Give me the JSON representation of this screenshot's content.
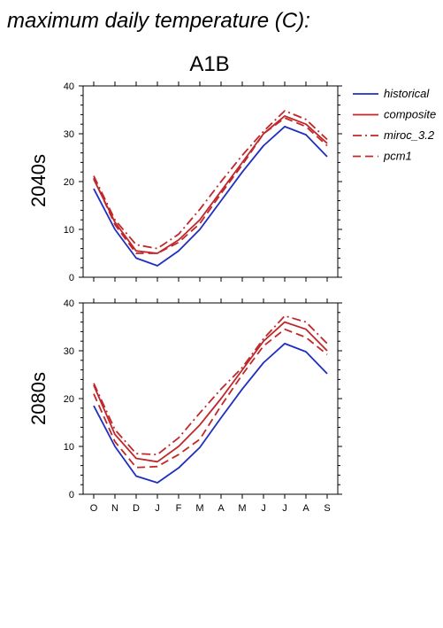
{
  "figure": {
    "header": "maximum daily temperature (C):",
    "scenario": "A1B"
  },
  "legend": [
    {
      "name": "historical",
      "color": "#1f2fbf",
      "dash": "solid"
    },
    {
      "name": "composite",
      "color": "#c0282a",
      "dash": "solid"
    },
    {
      "name": "miroc_3.2",
      "color": "#c0282a",
      "dash": "dashdot"
    },
    {
      "name": "pcm1",
      "color": "#c0282a",
      "dash": "dashed"
    }
  ],
  "chart_data": [
    {
      "type": "line",
      "period_label": "2040s",
      "categories": [
        "O",
        "N",
        "D",
        "J",
        "F",
        "M",
        "A",
        "M",
        "J",
        "J",
        "A",
        "S"
      ],
      "ylim": [
        0,
        40
      ],
      "yticks": [
        0,
        10,
        20,
        30,
        40
      ],
      "grid": false,
      "legend_position": "right",
      "series": [
        {
          "name": "historical",
          "color": "#1f2fbf",
          "dash": "solid",
          "values": [
            18.5,
            10.0,
            4.0,
            2.4,
            5.5,
            10.0,
            16.0,
            22.0,
            27.5,
            31.5,
            29.8,
            25.2
          ]
        },
        {
          "name": "composite",
          "color": "#c0282a",
          "dash": "solid",
          "values": [
            20.5,
            11.5,
            5.5,
            5.0,
            7.8,
            12.0,
            18.0,
            24.0,
            30.0,
            33.7,
            32.0,
            28.0
          ]
        },
        {
          "name": "miroc_3.2",
          "color": "#c0282a",
          "dash": "dashdot",
          "values": [
            21.2,
            12.0,
            6.8,
            6.0,
            9.0,
            14.2,
            20.0,
            25.5,
            30.5,
            34.8,
            33.0,
            28.8
          ]
        },
        {
          "name": "pcm1",
          "color": "#c0282a",
          "dash": "dashed",
          "values": [
            20.8,
            11.0,
            5.0,
            5.0,
            7.3,
            11.2,
            17.5,
            23.5,
            30.0,
            33.3,
            31.5,
            27.5
          ]
        }
      ]
    },
    {
      "type": "line",
      "period_label": "2080s",
      "categories": [
        "O",
        "N",
        "D",
        "J",
        "F",
        "M",
        "A",
        "M",
        "J",
        "J",
        "A",
        "S"
      ],
      "ylim": [
        0,
        40
      ],
      "yticks": [
        0,
        10,
        20,
        30,
        40
      ],
      "grid": false,
      "legend_position": "right",
      "series": [
        {
          "name": "historical",
          "color": "#1f2fbf",
          "dash": "solid",
          "values": [
            18.5,
            10.0,
            3.8,
            2.4,
            5.5,
            9.8,
            16.0,
            22.0,
            27.5,
            31.5,
            29.8,
            25.2
          ]
        },
        {
          "name": "composite",
          "color": "#c0282a",
          "dash": "solid",
          "values": [
            22.8,
            12.5,
            7.5,
            6.8,
            10.0,
            14.5,
            20.0,
            26.0,
            32.0,
            36.0,
            34.5,
            30.0
          ]
        },
        {
          "name": "miroc_3.2",
          "color": "#c0282a",
          "dash": "dashdot",
          "values": [
            23.2,
            13.5,
            8.5,
            8.3,
            11.8,
            17.0,
            22.0,
            26.5,
            32.5,
            37.3,
            36.0,
            31.5
          ]
        },
        {
          "name": "pcm1",
          "color": "#c0282a",
          "dash": "dashed",
          "values": [
            21.0,
            11.0,
            5.6,
            5.8,
            8.3,
            11.5,
            18.5,
            25.0,
            31.0,
            34.5,
            32.8,
            29.2
          ]
        }
      ]
    }
  ]
}
